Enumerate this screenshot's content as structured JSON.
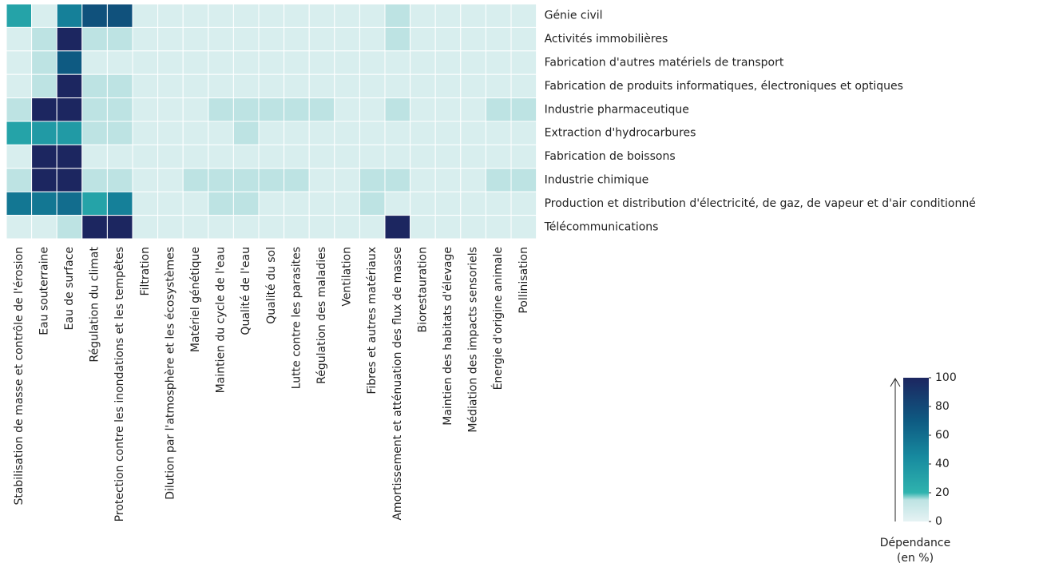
{
  "chart_data": {
    "type": "heatmap",
    "x_categories": [
      "Stabilisation de masse et contrôle de l'érosion",
      "Eau souterraine",
      "Eau de surface",
      "Régulation du climat",
      "Protection contre les inondations et les tempêtes",
      "Filtration",
      "Dilution par l'atmosphère et les écosystèmes",
      "Matériel génétique",
      "Maintien du cycle de l'eau",
      "Qualité de l'eau",
      "Qualité du sol",
      "Lutte contre les parasites",
      "Régulation des maladies",
      "Ventilation",
      "Fibres et autres matériaux",
      "Amortissement et atténuation des flux de masse",
      "Biorestauration",
      "Maintien des habitats d'élevage",
      "Médiation des impacts sensoriels",
      "Énergie d'origine animale",
      "Pollinisation"
    ],
    "y_categories": [
      "Génie civil",
      "Activités immobilières",
      "Fabrication d'autres matériels de transport",
      "Fabrication de produits informatiques, électroniques et optiques",
      "Industrie pharmaceutique",
      "Extraction d'hydrocarbures",
      "Fabrication de boissons",
      "Industrie chimique",
      "Production et distribution d'électricité, de gaz, de vapeur et d'air conditionné",
      "Télécommunications"
    ],
    "values": [
      [
        30,
        5,
        50,
        75,
        75,
        5,
        5,
        5,
        5,
        5,
        5,
        5,
        5,
        5,
        5,
        15,
        5,
        5,
        5,
        5,
        5
      ],
      [
        5,
        15,
        100,
        15,
        15,
        5,
        5,
        5,
        5,
        5,
        5,
        5,
        5,
        5,
        5,
        15,
        5,
        5,
        5,
        5,
        5
      ],
      [
        5,
        15,
        70,
        5,
        5,
        5,
        5,
        5,
        5,
        5,
        5,
        5,
        5,
        5,
        5,
        5,
        5,
        5,
        5,
        5,
        5
      ],
      [
        5,
        15,
        100,
        15,
        15,
        5,
        5,
        5,
        5,
        5,
        5,
        5,
        5,
        5,
        5,
        5,
        5,
        5,
        5,
        5,
        5
      ],
      [
        15,
        100,
        100,
        15,
        15,
        5,
        5,
        5,
        15,
        15,
        15,
        15,
        15,
        5,
        5,
        15,
        5,
        5,
        5,
        15,
        15
      ],
      [
        30,
        35,
        35,
        15,
        15,
        5,
        5,
        5,
        5,
        15,
        5,
        5,
        5,
        5,
        5,
        5,
        5,
        5,
        5,
        5,
        5
      ],
      [
        5,
        100,
        100,
        5,
        5,
        5,
        5,
        5,
        5,
        5,
        5,
        5,
        5,
        5,
        5,
        5,
        5,
        5,
        5,
        5,
        5
      ],
      [
        15,
        100,
        100,
        15,
        15,
        5,
        5,
        15,
        15,
        15,
        15,
        15,
        5,
        5,
        15,
        15,
        5,
        5,
        5,
        15,
        15
      ],
      [
        55,
        55,
        60,
        30,
        50,
        5,
        5,
        5,
        15,
        15,
        5,
        5,
        5,
        5,
        15,
        5,
        5,
        5,
        5,
        5,
        5
      ],
      [
        5,
        5,
        15,
        100,
        100,
        5,
        5,
        5,
        5,
        5,
        5,
        5,
        5,
        5,
        5,
        100,
        5,
        5,
        5,
        5,
        5
      ]
    ],
    "clim": [
      0,
      100
    ],
    "cticks": [
      0,
      20,
      40,
      60,
      80,
      100
    ],
    "colorbar_label": [
      "Dépendance",
      "(en %)"
    ]
  }
}
